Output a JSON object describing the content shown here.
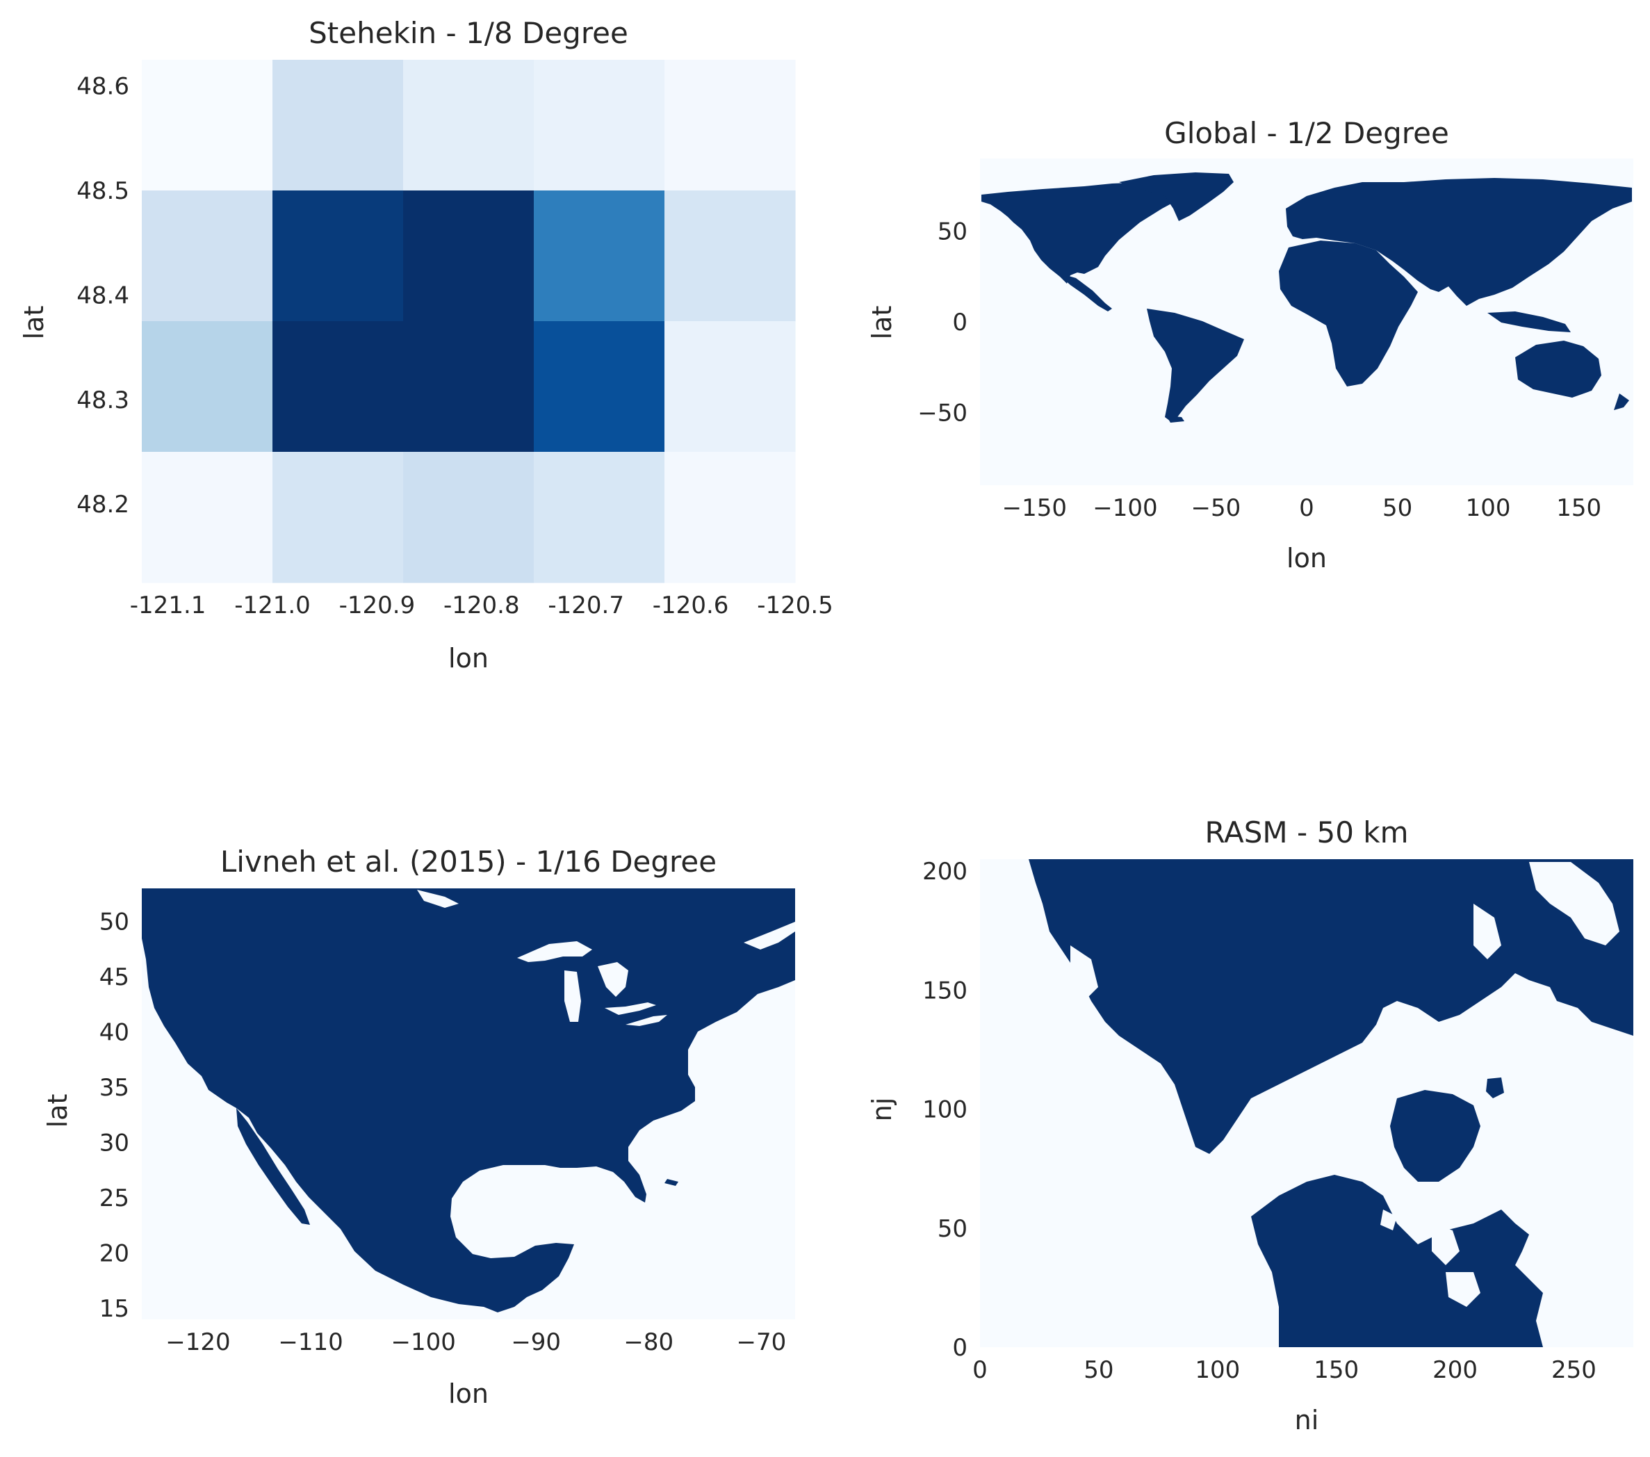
{
  "figure": {
    "panels": [
      {
        "id": "stehekin",
        "title": "Stehekin - 1/8 Degree"
      },
      {
        "id": "global",
        "title": "Global - 1/2 Degree"
      },
      {
        "id": "livneh",
        "title": "Livneh et al. (2015) - 1/16 Degree"
      },
      {
        "id": "rasm",
        "title": "RASM - 50 km"
      }
    ]
  },
  "colors": {
    "land": "#08306b",
    "water": "#f7fbff",
    "text": "#262626"
  },
  "chart_data": [
    {
      "id": "stehekin",
      "type": "heatmap",
      "title": "Stehekin - 1/8 Degree",
      "xlabel": "lon",
      "ylabel": "lat",
      "xlim": [
        -121.125,
        -120.5
      ],
      "ylim": [
        48.125,
        48.625
      ],
      "xticks": [
        -121.1,
        -121.0,
        -120.9,
        -120.8,
        -120.7,
        -120.6,
        -120.5
      ],
      "xtick_labels": [
        "-121.1",
        "-121.0",
        "-120.9",
        "-120.8",
        "-120.7",
        "-120.6",
        "-120.5"
      ],
      "yticks": [
        48.2,
        48.3,
        48.4,
        48.5,
        48.6
      ],
      "ytick_labels": [
        "48.2",
        "48.3",
        "48.4",
        "48.5",
        "48.6"
      ],
      "x_edges": [
        -121.125,
        -121.0,
        -120.875,
        -120.75,
        -120.625,
        -120.5
      ],
      "y_edges": [
        48.125,
        48.25,
        48.375,
        48.5,
        48.625
      ],
      "colorscale": "Blues",
      "values": [
        [
          0.0,
          0.2,
          0.1,
          0.07,
          0.02
        ],
        [
          0.2,
          0.96,
          1.0,
          0.7,
          0.17
        ],
        [
          0.3,
          1.0,
          1.0,
          0.88,
          0.07
        ],
        [
          0.02,
          0.17,
          0.22,
          0.16,
          0.02
        ]
      ],
      "grid": false
    },
    {
      "id": "global",
      "type": "heatmap",
      "title": "Global - 1/2 Degree",
      "xlabel": "lon",
      "ylabel": "lat",
      "xlim": [
        -180,
        180
      ],
      "ylim": [
        -90,
        90
      ],
      "xticks": [
        -150,
        -100,
        -50,
        0,
        50,
        100,
        150
      ],
      "xtick_labels": [
        "−150",
        "−100",
        "−50",
        "0",
        "50",
        "100",
        "150"
      ],
      "yticks": [
        -50,
        0,
        50
      ],
      "ytick_labels": [
        "−50",
        "0",
        "50"
      ],
      "values_description": "binary land mask (1 = land, 0 = water)",
      "colorscale": "Blues",
      "grid": false
    },
    {
      "id": "livneh",
      "type": "heatmap",
      "title": "Livneh et al. (2015) - 1/16 Degree",
      "xlabel": "lon",
      "ylabel": "lat",
      "xlim": [
        -125,
        -67
      ],
      "ylim": [
        14,
        53
      ],
      "xticks": [
        -120,
        -110,
        -100,
        -90,
        -80,
        -70
      ],
      "xtick_labels": [
        "−120",
        "−110",
        "−100",
        "−90",
        "−80",
        "−70"
      ],
      "yticks": [
        15,
        20,
        25,
        30,
        35,
        40,
        45,
        50
      ],
      "ytick_labels": [
        "15",
        "20",
        "25",
        "30",
        "35",
        "40",
        "45",
        "50"
      ],
      "values_description": "binary land mask (1 = land, 0 = water)",
      "colorscale": "Blues",
      "grid": false
    },
    {
      "id": "rasm",
      "type": "heatmap",
      "title": "RASM - 50 km",
      "xlabel": "ni",
      "ylabel": "nj",
      "xlim": [
        0,
        275
      ],
      "ylim": [
        0,
        205
      ],
      "xticks": [
        0,
        50,
        100,
        150,
        200,
        250
      ],
      "xtick_labels": [
        "0",
        "50",
        "100",
        "150",
        "200",
        "250"
      ],
      "yticks": [
        0,
        50,
        100,
        150,
        200
      ],
      "ytick_labels": [
        "0",
        "50",
        "100",
        "150",
        "200"
      ],
      "values_description": "binary land mask (1 = land, 0 = water)",
      "colorscale": "Blues",
      "grid": false
    }
  ]
}
